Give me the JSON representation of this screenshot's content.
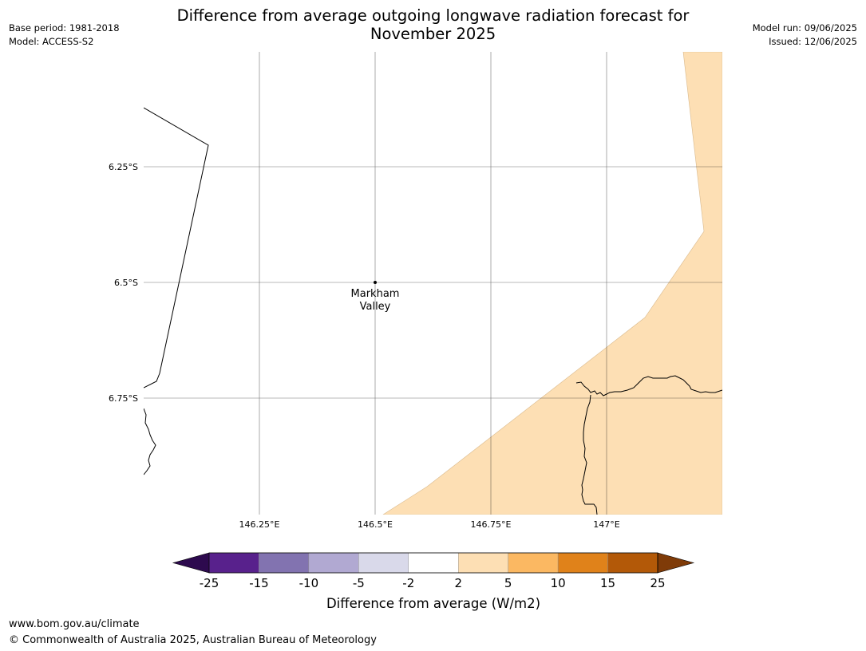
{
  "header": {
    "base_period": "Base period: 1981-2018",
    "model": "Model: ACCESS-S2",
    "title_line1": "Difference from average outgoing longwave radiation forecast for",
    "title_line2": "November 2025",
    "model_run": "Model run: 09/06/2025",
    "issued": "Issued: 12/06/2025"
  },
  "map": {
    "lat_labels": [
      "6.25°S",
      "6.5°S",
      "6.75°S"
    ],
    "lon_labels": [
      "146.25°E",
      "146.5°E",
      "146.75°E",
      "147°E"
    ],
    "place": {
      "name_line1": "Markham",
      "name_line2": "Valley"
    },
    "shaded_category": "2 to 5",
    "shaded_color": "#fddfb4"
  },
  "legend": {
    "title": "Difference from average (W/m2)",
    "ticks": [
      "-25",
      "-15",
      "-10",
      "-5",
      "-2",
      "2",
      "5",
      "10",
      "15",
      "25"
    ],
    "colors": {
      "under": "#2d0a4e",
      "bins": [
        "#58218c",
        "#8273b0",
        "#b1a9d2",
        "#d9d9ea",
        "#ffffff",
        "#fddfb4",
        "#fbb862",
        "#e0821a",
        "#b35908"
      ],
      "over": "#7f3b08"
    }
  },
  "footer": {
    "url": "www.bom.gov.au/climate",
    "copyright": "© Commonwealth of Australia 2025, Australian Bureau of Meteorology"
  }
}
